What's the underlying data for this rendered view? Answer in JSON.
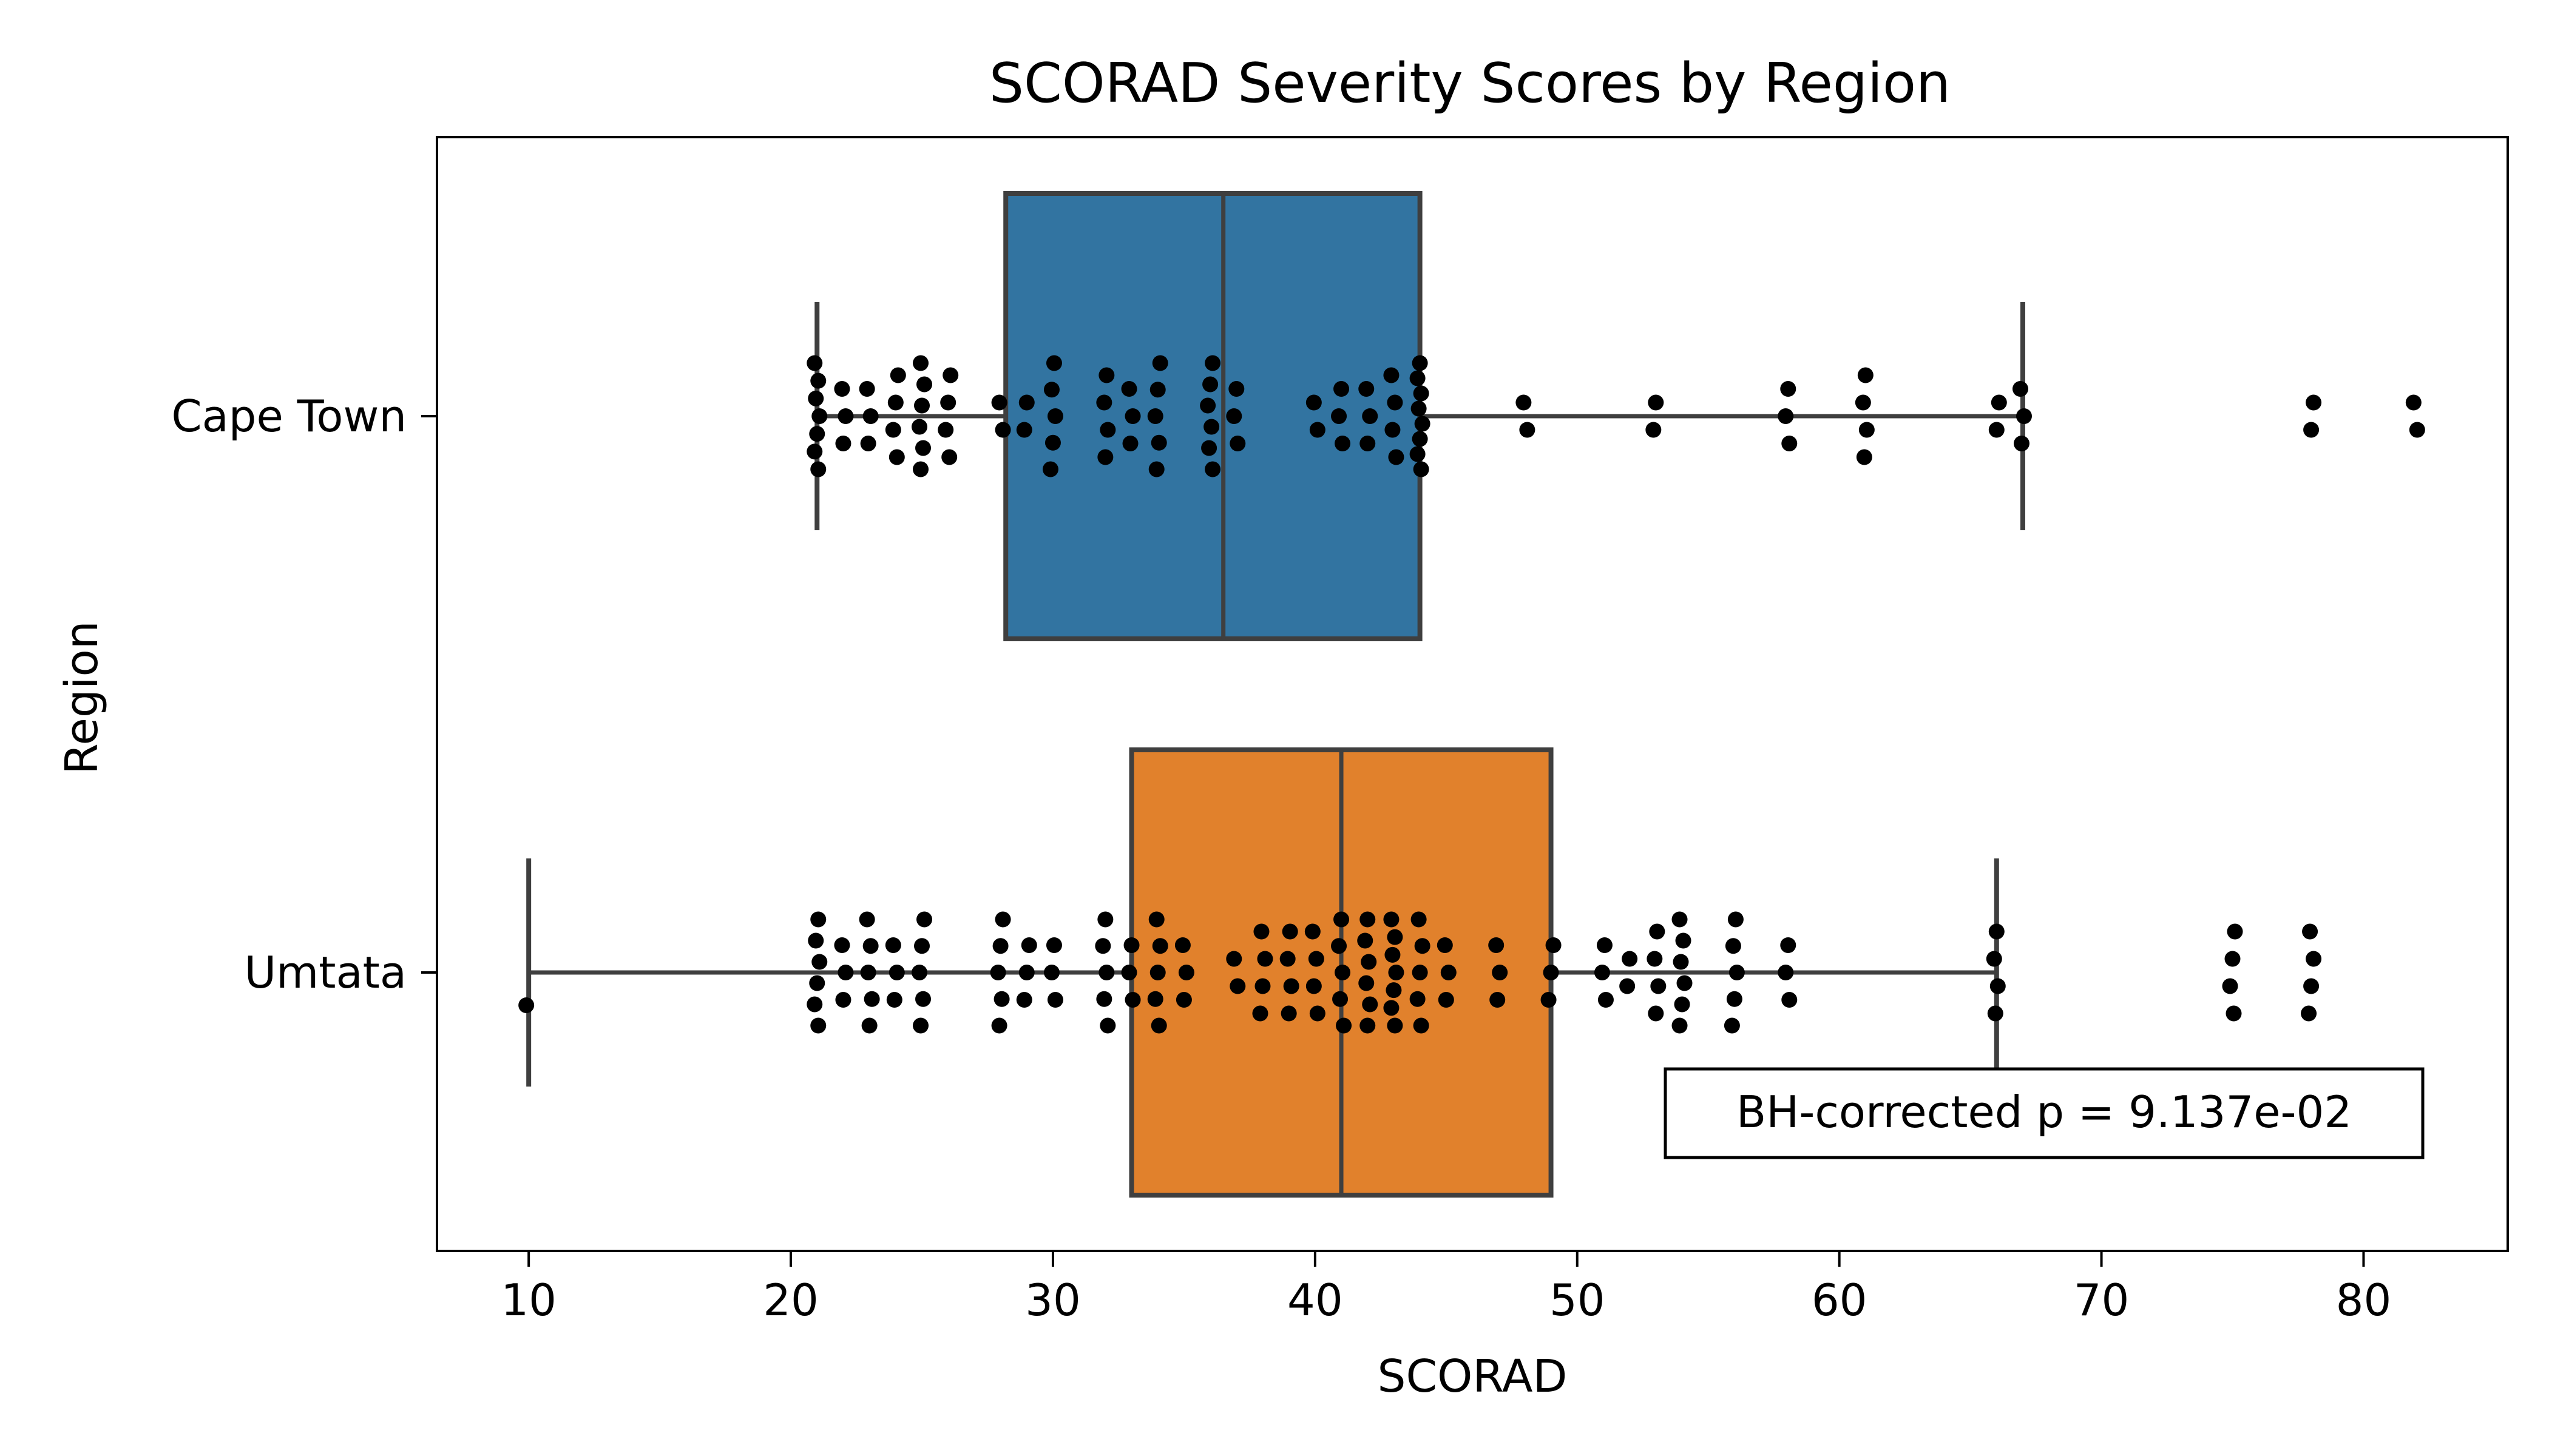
{
  "chart_data": {
    "type": "box",
    "orientation": "horizontal",
    "title": "SCORAD Severity Scores by Region",
    "xlabel": "SCORAD",
    "ylabel": "Region",
    "xlim": [
      6.5,
      85.5
    ],
    "xticks": [
      10,
      20,
      30,
      40,
      50,
      60,
      70,
      80
    ],
    "grid": false,
    "annotation": {
      "text": "BH-corrected p = 9.137e-02",
      "position": "lower-right"
    },
    "series": [
      {
        "name": "Cape Town",
        "color": "#3274a1",
        "whisker_low": 21,
        "q1": 28.2,
        "median": 36.5,
        "q3": 44,
        "whisker_high": 67,
        "points": [
          21,
          21,
          21,
          21,
          21,
          21,
          21,
          22,
          22,
          22,
          23,
          23,
          23,
          24,
          24,
          24,
          24,
          25,
          25,
          25,
          25,
          25,
          25,
          26,
          26,
          26,
          26,
          28,
          28,
          29,
          29,
          30,
          30,
          30,
          30,
          30,
          32,
          32,
          32,
          32,
          33,
          33,
          33,
          34,
          34,
          34,
          34,
          34,
          36,
          36,
          36,
          36,
          36,
          36,
          37,
          37,
          37,
          40,
          40,
          41,
          41,
          41,
          42,
          42,
          42,
          43,
          43,
          43,
          43,
          44,
          44,
          44,
          44,
          44,
          44,
          44,
          44,
          48,
          48,
          53,
          53,
          58,
          58,
          58,
          61,
          61,
          61,
          61,
          66,
          66,
          67,
          67,
          67,
          78,
          78,
          82,
          82
        ]
      },
      {
        "name": "Umtata",
        "color": "#e1812c",
        "whisker_low": 10,
        "q1": 33,
        "median": 41,
        "q3": 49,
        "whisker_high": 66,
        "points": [
          10,
          21,
          21,
          21,
          21,
          21,
          21,
          22,
          22,
          22,
          23,
          23,
          23,
          23,
          23,
          24,
          24,
          24,
          25,
          25,
          25,
          25,
          25,
          28,
          28,
          28,
          28,
          28,
          29,
          29,
          29,
          30,
          30,
          30,
          32,
          32,
          32,
          32,
          32,
          33,
          33,
          33,
          34,
          34,
          34,
          34,
          34,
          35,
          35,
          35,
          37,
          37,
          38,
          38,
          38,
          38,
          39,
          39,
          39,
          39,
          40,
          40,
          40,
          40,
          41,
          41,
          41,
          41,
          41,
          42,
          42,
          42,
          42,
          42,
          42,
          43,
          43,
          43,
          43,
          43,
          43,
          43,
          44,
          44,
          44,
          44,
          44,
          45,
          45,
          45,
          47,
          47,
          47,
          49,
          49,
          49,
          51,
          51,
          51,
          52,
          52,
          53,
          53,
          53,
          53,
          54,
          54,
          54,
          54,
          54,
          54,
          56,
          56,
          56,
          56,
          56,
          58,
          58,
          58,
          66,
          66,
          66,
          66,
          75,
          75,
          75,
          75,
          78,
          78,
          78,
          78
        ]
      }
    ]
  }
}
